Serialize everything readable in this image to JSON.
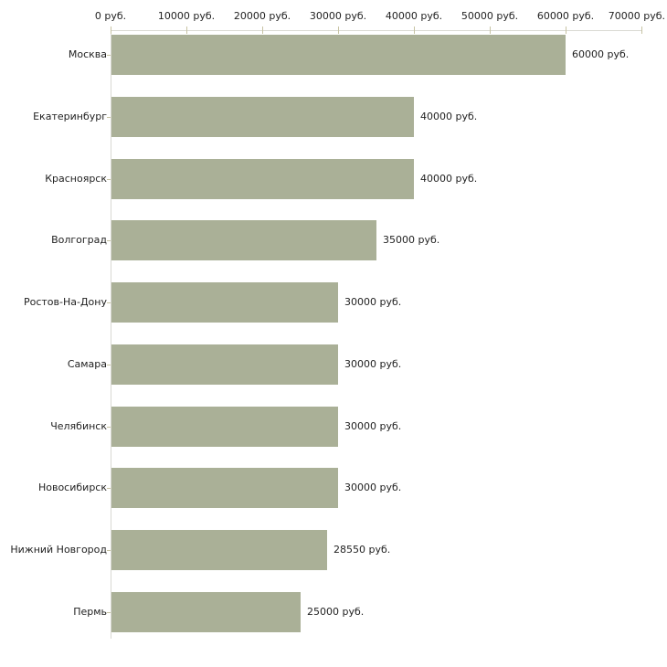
{
  "chart_data": {
    "type": "bar",
    "orientation": "horizontal",
    "title": "",
    "categories": [
      "Москва",
      "Екатеринбург",
      "Красноярск",
      "Волгоград",
      "Ростов-На-Дону",
      "Самара",
      "Челябинск",
      "Новосибирск",
      "Нижний Новгород",
      "Пермь"
    ],
    "values": [
      60000,
      40000,
      40000,
      35000,
      30000,
      30000,
      30000,
      30000,
      28550,
      25000
    ],
    "value_labels": [
      "60000 руб.",
      "40000 руб.",
      "40000 руб.",
      "35000 руб.",
      "30000 руб.",
      "30000 руб.",
      "30000 руб.",
      "30000 руб.",
      "28550 руб.",
      "25000 руб."
    ],
    "unit": "руб.",
    "x_axis": {
      "position": "top",
      "range": [
        0,
        70000
      ],
      "ticks": [
        0,
        10000,
        20000,
        30000,
        40000,
        50000,
        60000,
        70000
      ],
      "tick_labels": [
        "0 руб.",
        "10000 руб.",
        "20000 руб.",
        "30000 руб.",
        "40000 руб.",
        "50000 руб.",
        "60000 руб.",
        "70000 руб."
      ]
    },
    "grid": false,
    "legend": false,
    "colors": {
      "bar": "#aab097",
      "axis_line": "#d9d9d3",
      "tick_mark": "#c7c3a3",
      "text": "#222222",
      "background": "#ffffff"
    }
  }
}
